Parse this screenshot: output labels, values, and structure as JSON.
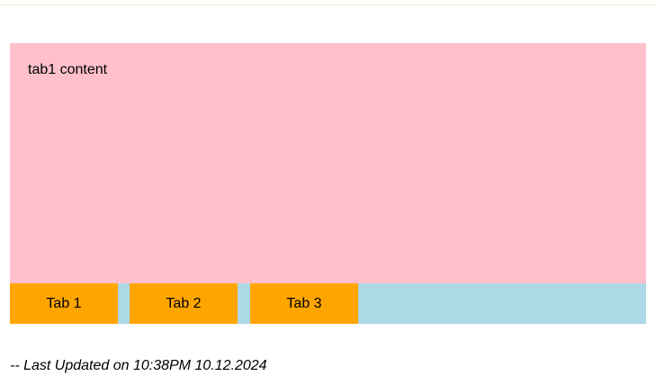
{
  "colors": {
    "panel_background": "#ffc0cb",
    "tabbar_background": "#add8e6",
    "tab_button_background": "#ffa500",
    "top_border": "#d7d7a8"
  },
  "panel": {
    "content_text": "tab1 content"
  },
  "tabs": [
    {
      "label": "Tab 1"
    },
    {
      "label": "Tab 2"
    },
    {
      "label": "Tab 3"
    }
  ],
  "footer": {
    "text": "-- Last Updated on 10:38PM 10.12.2024"
  }
}
